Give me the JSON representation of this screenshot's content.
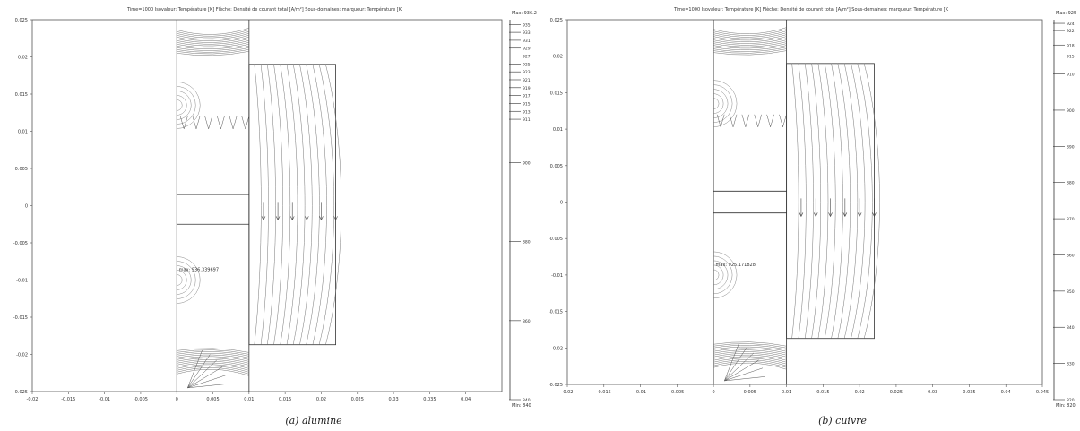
{
  "chart_data": [
    {
      "type": "contour",
      "title": "Time=1000   Isovaleur: Température [K]   Flèche: Densité de courant total [A/m²]   Sous-domaines: marqueur: Température [K",
      "caption": "(a) alumine",
      "xlim": [
        -0.02,
        0.045
      ],
      "ylim": [
        -0.025,
        0.025
      ],
      "x_ticks": [
        "-0.02",
        "-0.015",
        "-0.01",
        "-0.005",
        "0",
        "0.005",
        "0.01",
        "0.015",
        "0.02",
        "0.025",
        "0.03",
        "0.035",
        "0.04"
      ],
      "y_ticks": [
        "0.025",
        "0.02",
        "0.015",
        "0.01",
        "0.005",
        "0",
        "-0.005",
        "-0.01",
        "-0.015",
        "-0.02",
        "-0.025"
      ],
      "grid": false,
      "colorbar": {
        "max_label": "Max: 936.2",
        "min_label": "Min: 840",
        "range": [
          840,
          936.2
        ],
        "tick_labels": [
          "935",
          "933",
          "931",
          "929",
          "927",
          "925",
          "923",
          "921",
          "919",
          "917",
          "915",
          "913",
          "911",
          "900",
          "880",
          "860",
          "840"
        ]
      },
      "annotation": "max: 936.339697"
    },
    {
      "type": "contour",
      "title": "Time=1000   Isovaleur: Température [K]   Flèche: Densité de courant total [A/m²]   Sous-domaines: marqueur: Température [K",
      "caption": "(b) cuivre",
      "xlim": [
        -0.02,
        0.045
      ],
      "ylim": [
        -0.025,
        0.025
      ],
      "x_ticks": [
        "-0.02",
        "-0.015",
        "-0.01",
        "-0.005",
        "0",
        "0.005",
        "0.01",
        "0.015",
        "0.02",
        "0.025",
        "0.03",
        "0.035",
        "0.04",
        "0.045"
      ],
      "y_ticks": [
        "0.025",
        "0.02",
        "0.015",
        "0.01",
        "0.005",
        "0",
        "-0.005",
        "-0.01",
        "-0.015",
        "-0.02",
        "-0.025"
      ],
      "grid": false,
      "colorbar": {
        "max_label": "Max: 925",
        "min_label": "Min: 820",
        "range": [
          820,
          925
        ],
        "tick_labels": [
          "924",
          "922",
          "918",
          "915",
          "910",
          "900",
          "890",
          "880",
          "870",
          "860",
          "850",
          "840",
          "830",
          "820"
        ]
      },
      "annotation": "max: 925.171828"
    }
  ]
}
